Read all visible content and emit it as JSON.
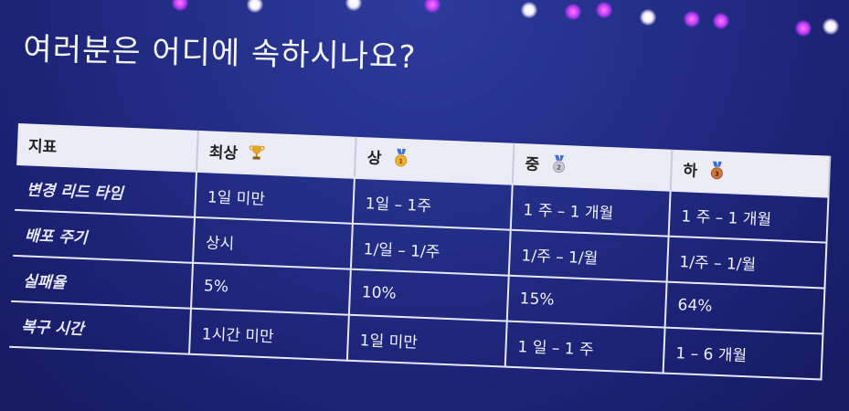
{
  "title": "여러분은 어디에 속하시나요?",
  "table": {
    "headers": [
      {
        "label": "지표",
        "icon": ""
      },
      {
        "label": "최상",
        "icon": "trophy-icon"
      },
      {
        "label": "상",
        "icon": "gold-medal-icon"
      },
      {
        "label": "중",
        "icon": "silver-medal-icon"
      },
      {
        "label": "하",
        "icon": "bronze-medal-icon"
      }
    ],
    "rows": [
      {
        "metric": "변경 리드 타임",
        "cells": [
          "1일 미만",
          "1일 – 1주",
          "1 주 – 1 개월",
          "1 주 – 1 개월"
        ]
      },
      {
        "metric": "배포 주기",
        "cells": [
          "상시",
          "1/일 – 1/주",
          "1/주 – 1/월",
          "1/주 – 1/월"
        ]
      },
      {
        "metric": "실패율",
        "cells": [
          "5%",
          "10%",
          "15%",
          "64%"
        ]
      },
      {
        "metric": "복구 시간",
        "cells": [
          "1시간 미만",
          "1일 미만",
          "1 일 – 1 주",
          "1 – 6 개월"
        ]
      }
    ]
  },
  "colors": {
    "trophy": "#e0a52a",
    "gold": "#f2b233",
    "silver": "#c7cbd6",
    "bronze": "#cf7a3c",
    "ribbon": "#3b6fd8"
  }
}
